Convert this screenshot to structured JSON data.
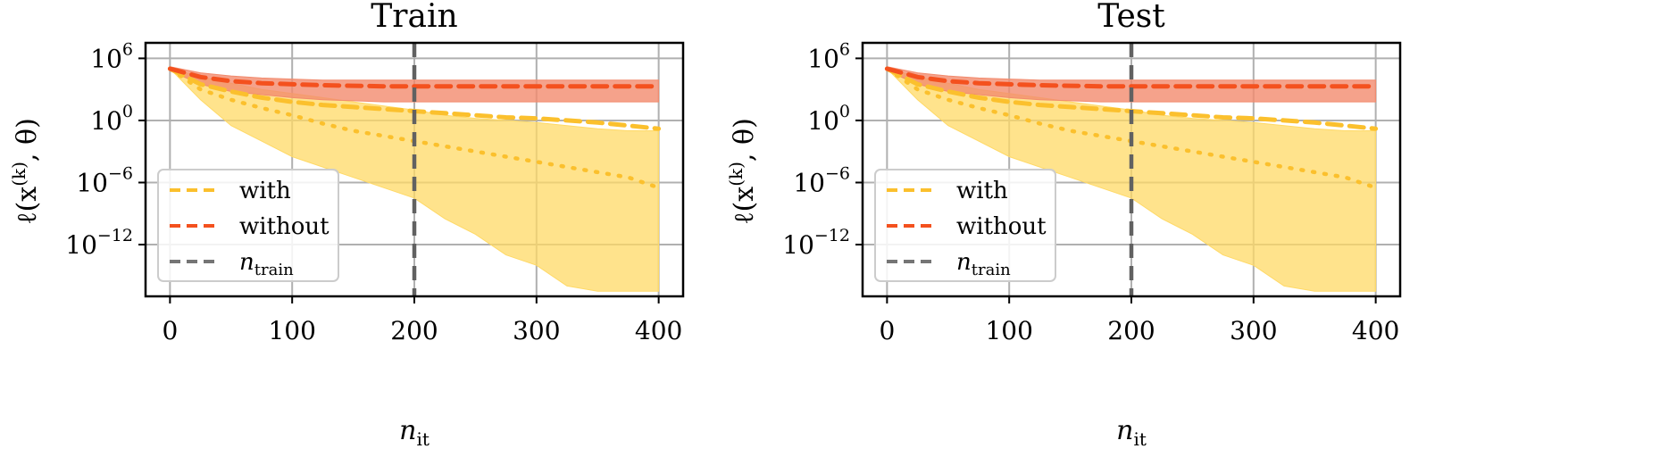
{
  "figure": {
    "legend_entries": [
      {
        "label": "with",
        "color": "#FBC02D",
        "style": "dashed"
      },
      {
        "label": "without",
        "color": "#F4511E",
        "style": "dashed"
      },
      {
        "label": "n_train",
        "label_main": "n",
        "label_sub": "train",
        "color": "#757575",
        "style": "dashed"
      }
    ],
    "x_tick_labels": [
      "0",
      "100",
      "200",
      "300",
      "400"
    ],
    "y_tick_labels": [
      {
        "base": "10",
        "exp": "6",
        "value": 6
      },
      {
        "base": "10",
        "exp": "0",
        "value": 0
      },
      {
        "base": "10",
        "exp": "−6",
        "value": -6
      },
      {
        "base": "10",
        "exp": "−12",
        "value": -12
      }
    ],
    "colors": {
      "with": "#FBC02D",
      "with_band": "#FFD966",
      "without": "#F4511E",
      "without_band": "#F28B6E",
      "ntrain": "#616161",
      "grid": "#b0b0b0"
    }
  },
  "chart_data": [
    {
      "type": "line",
      "title": "Train",
      "xlabel": "n_it",
      "xlabel_main": "n",
      "xlabel_sub": "it",
      "ylabel": "ℓ(x^(k), θ)",
      "yscale": "log",
      "xlim": [
        -20,
        420
      ],
      "ylim_log10": [
        -17,
        7.5
      ],
      "grid": true,
      "legend_placement": "lower-left",
      "vline_x": 200,
      "x": [
        0,
        25,
        50,
        75,
        100,
        125,
        150,
        175,
        200,
        225,
        250,
        275,
        300,
        325,
        350,
        375,
        400
      ],
      "series": [
        {
          "name": "with",
          "kind": "mean",
          "log10_values": [
            5,
            3.5,
            2.8,
            2.2,
            1.8,
            1.5,
            1.3,
            1.1,
            0.9,
            0.7,
            0.5,
            0.3,
            0.2,
            0,
            -0.2,
            -0.5,
            -0.8
          ]
        },
        {
          "name": "with",
          "kind": "median",
          "log10_values": [
            5,
            3,
            2,
            1.2,
            0.5,
            -0.3,
            -1,
            -1.5,
            -2,
            -2.5,
            -3,
            -3.5,
            -4,
            -4.5,
            -5,
            -5.5,
            -6.5
          ]
        },
        {
          "name": "with",
          "kind": "band_upper",
          "log10_values": [
            5,
            4.2,
            3.6,
            3,
            2.6,
            2.2,
            1.8,
            1.4,
            1,
            0.5,
            0.2,
            0,
            -0.2,
            -0.5,
            -0.8,
            -1,
            -1
          ]
        },
        {
          "name": "with",
          "kind": "band_lower",
          "log10_values": [
            5,
            2,
            -0.5,
            -2,
            -3.5,
            -4.5,
            -5.5,
            -6.5,
            -7.5,
            -9.5,
            -11,
            -13,
            -14,
            -16,
            -16.5,
            -16.5,
            -16.5
          ]
        },
        {
          "name": "without",
          "kind": "mean",
          "log10_values": [
            5,
            4.2,
            3.8,
            3.6,
            3.5,
            3.4,
            3.35,
            3.3,
            3.3,
            3.3,
            3.3,
            3.3,
            3.3,
            3.3,
            3.3,
            3.3,
            3.3
          ]
        },
        {
          "name": "without",
          "kind": "band_upper",
          "log10_values": [
            5.2,
            4.6,
            4.3,
            4.1,
            4,
            3.9,
            3.9,
            3.9,
            3.9,
            3.9,
            3.9,
            3.9,
            3.9,
            3.9,
            3.9,
            3.9,
            3.9
          ]
        },
        {
          "name": "without",
          "kind": "band_lower",
          "log10_values": [
            4.8,
            3.5,
            2.8,
            2.5,
            2.2,
            2,
            1.9,
            1.8,
            1.8,
            1.8,
            1.8,
            1.8,
            1.8,
            1.8,
            1.8,
            1.8,
            1.8
          ]
        }
      ]
    },
    {
      "type": "line",
      "title": "Test",
      "xlabel": "n_it",
      "xlabel_main": "n",
      "xlabel_sub": "it",
      "ylabel": "ℓ(x^(k), θ)",
      "yscale": "log",
      "xlim": [
        -20,
        420
      ],
      "ylim_log10": [
        -17,
        7.5
      ],
      "grid": true,
      "legend_placement": "lower-left",
      "vline_x": 200,
      "x": [
        0,
        25,
        50,
        75,
        100,
        125,
        150,
        175,
        200,
        225,
        250,
        275,
        300,
        325,
        350,
        375,
        400
      ],
      "series": [
        {
          "name": "with",
          "kind": "mean",
          "log10_values": [
            5,
            3.5,
            2.8,
            2.2,
            1.8,
            1.5,
            1.3,
            1.1,
            0.9,
            0.7,
            0.5,
            0.3,
            0.2,
            0,
            -0.2,
            -0.5,
            -0.8
          ]
        },
        {
          "name": "with",
          "kind": "median",
          "log10_values": [
            5,
            3,
            2,
            1.2,
            0.5,
            -0.3,
            -1,
            -1.5,
            -2,
            -2.5,
            -3,
            -3.5,
            -4,
            -4.5,
            -5,
            -5.5,
            -6.5
          ]
        },
        {
          "name": "with",
          "kind": "band_upper",
          "log10_values": [
            5,
            4.2,
            3.6,
            3,
            2.6,
            2.2,
            1.8,
            1.4,
            1,
            0.5,
            0.2,
            0,
            -0.2,
            -0.5,
            -0.8,
            -1,
            -1
          ]
        },
        {
          "name": "with",
          "kind": "band_lower",
          "log10_values": [
            5,
            2,
            -0.5,
            -2,
            -3.5,
            -4.5,
            -5.5,
            -6.5,
            -7.5,
            -9.5,
            -11,
            -13,
            -14,
            -16,
            -16.5,
            -16.5,
            -16.5
          ]
        },
        {
          "name": "without",
          "kind": "mean",
          "log10_values": [
            5,
            4.2,
            3.8,
            3.6,
            3.5,
            3.4,
            3.35,
            3.3,
            3.3,
            3.3,
            3.3,
            3.3,
            3.3,
            3.3,
            3.3,
            3.3,
            3.3
          ]
        },
        {
          "name": "without",
          "kind": "band_upper",
          "log10_values": [
            5.2,
            4.6,
            4.3,
            4.1,
            4,
            3.9,
            3.9,
            3.9,
            3.9,
            3.9,
            3.9,
            3.9,
            3.9,
            3.9,
            3.9,
            3.9,
            3.9
          ]
        },
        {
          "name": "without",
          "kind": "band_lower",
          "log10_values": [
            4.8,
            3.5,
            2.8,
            2.5,
            2.2,
            2,
            1.9,
            1.8,
            1.8,
            1.8,
            1.8,
            1.8,
            1.8,
            1.8,
            1.8,
            1.8,
            1.8
          ]
        }
      ]
    }
  ]
}
